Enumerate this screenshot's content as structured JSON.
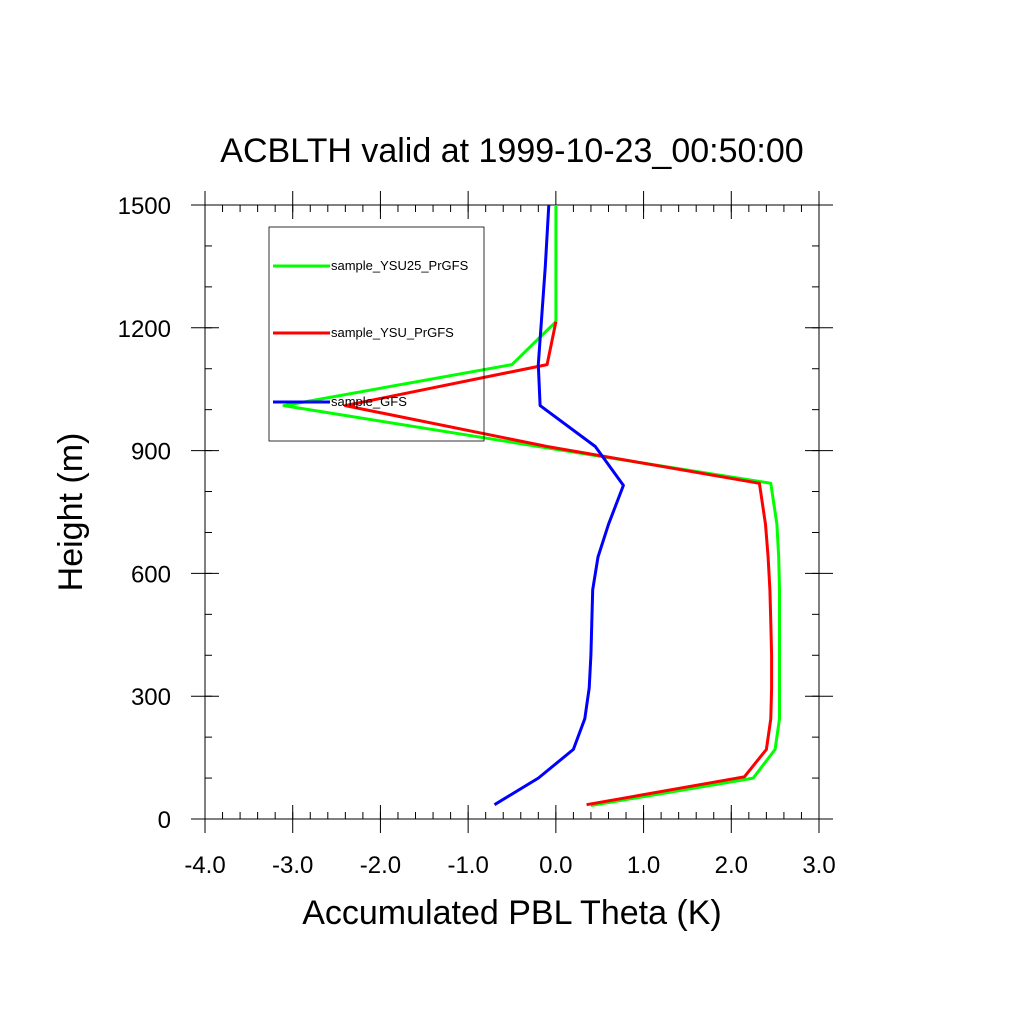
{
  "chart_data": {
    "type": "line",
    "title": "ACBLTH valid at 1999-10-23_00:50:00",
    "xlabel": "Accumulated PBL Theta (K)",
    "ylabel": "Height (m)",
    "xlim": [
      -4.0,
      3.0
    ],
    "ylim": [
      0,
      1500
    ],
    "xticks": [
      -4.0,
      -3.0,
      -2.0,
      -1.0,
      0.0,
      1.0,
      2.0,
      3.0
    ],
    "xtick_labels": [
      "-4.0",
      "-3.0",
      "-2.0",
      "-1.0",
      "0.0",
      "1.0",
      "2.0",
      "3.0"
    ],
    "yticks": [
      0,
      300,
      600,
      900,
      1200,
      1500
    ],
    "ytick_labels": [
      "0",
      "300",
      "600",
      "900",
      "1200",
      "1500"
    ],
    "x_minor_step": 0.2,
    "y_minor_step": 100,
    "grid": false,
    "legend_position": "top-left",
    "series": [
      {
        "name": "sample_YSU25_PrGFS",
        "color": "#00ff00",
        "points": [
          [
            0.4,
            33
          ],
          [
            2.25,
            100
          ],
          [
            2.5,
            170
          ],
          [
            2.55,
            245
          ],
          [
            2.55,
            320
          ],
          [
            2.55,
            400
          ],
          [
            2.55,
            480
          ],
          [
            2.55,
            560
          ],
          [
            2.54,
            640
          ],
          [
            2.52,
            720
          ],
          [
            2.45,
            820
          ],
          [
            -0.2,
            910
          ],
          [
            -3.1,
            1010
          ],
          [
            -0.5,
            1110
          ],
          [
            0.0,
            1215
          ],
          [
            0.0,
            1350
          ],
          [
            0.0,
            1500
          ]
        ]
      },
      {
        "name": "sample_YSU_PrGFS",
        "color": "#ff0000",
        "points": [
          [
            0.35,
            35
          ],
          [
            2.15,
            103
          ],
          [
            2.4,
            170
          ],
          [
            2.45,
            245
          ],
          [
            2.46,
            320
          ],
          [
            2.46,
            400
          ],
          [
            2.45,
            480
          ],
          [
            2.44,
            560
          ],
          [
            2.42,
            640
          ],
          [
            2.39,
            720
          ],
          [
            2.32,
            820
          ],
          [
            -0.1,
            910
          ],
          [
            -2.4,
            1010
          ],
          [
            -0.1,
            1110
          ],
          [
            0.0,
            1215
          ]
        ]
      },
      {
        "name": "sample_GFS",
        "color": "#0000ff",
        "points": [
          [
            -0.7,
            35
          ],
          [
            -0.2,
            100
          ],
          [
            0.2,
            170
          ],
          [
            0.33,
            245
          ],
          [
            0.38,
            320
          ],
          [
            0.4,
            400
          ],
          [
            0.41,
            480
          ],
          [
            0.42,
            560
          ],
          [
            0.48,
            640
          ],
          [
            0.6,
            720
          ],
          [
            0.77,
            815
          ],
          [
            0.45,
            910
          ],
          [
            -0.18,
            1010
          ],
          [
            -0.2,
            1110
          ],
          [
            -0.12,
            1350
          ],
          [
            -0.08,
            1500
          ]
        ]
      }
    ]
  }
}
